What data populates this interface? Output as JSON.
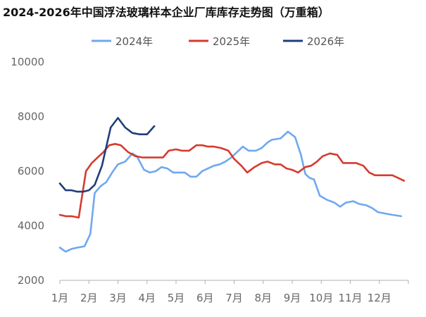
{
  "chart_data": {
    "type": "line",
    "title": "2024-2026年中国浮法玻璃样本企业厂库库存走势图（万重箱）",
    "xlabel": "",
    "ylabel": "",
    "ylim": [
      2000,
      10000
    ],
    "yticks": [
      2000,
      4000,
      6000,
      8000,
      10000
    ],
    "month_labels": [
      "1月",
      "2月",
      "3月",
      "4月",
      "5月",
      "6月",
      "7月",
      "8月",
      "9月",
      "10月",
      "11月",
      "12月"
    ],
    "grid": false,
    "legend_position": "top",
    "series": [
      {
        "name": "2024年",
        "color": "#6fa8f0",
        "x": [
          0,
          0.2,
          0.4,
          0.6,
          0.85,
          1.05,
          1.2,
          1.4,
          1.6,
          1.8,
          2.0,
          2.25,
          2.5,
          2.65,
          2.9,
          3.1,
          3.3,
          3.5,
          3.7,
          3.9,
          4.1,
          4.3,
          4.5,
          4.7,
          4.9,
          5.1,
          5.3,
          5.5,
          5.7,
          5.9,
          6.1,
          6.3,
          6.5,
          6.75,
          6.95,
          7.15,
          7.3,
          7.6,
          7.85,
          8.1,
          8.3,
          8.45,
          8.6,
          8.75,
          8.95,
          9.2,
          9.45,
          9.65,
          9.85,
          10.1,
          10.3,
          10.55,
          10.75,
          10.95,
          11.2,
          11.45,
          11.75
        ],
        "values": [
          3200,
          3050,
          3150,
          3200,
          3250,
          3700,
          5200,
          5450,
          5600,
          5950,
          6250,
          6350,
          6650,
          6550,
          6050,
          5950,
          6000,
          6150,
          6100,
          5950,
          5950,
          5950,
          5800,
          5800,
          6000,
          6100,
          6200,
          6250,
          6350,
          6500,
          6700,
          6900,
          6750,
          6750,
          6850,
          7050,
          7150,
          7200,
          7450,
          7250,
          6600,
          5900,
          5750,
          5700,
          5100,
          4950,
          4850,
          4700,
          4850,
          4900,
          4800,
          4750,
          4650,
          4500,
          4450,
          4400,
          4350
        ]
      },
      {
        "name": "2025年",
        "color": "#d63a2f",
        "x": [
          0,
          0.2,
          0.4,
          0.65,
          0.9,
          1.1,
          1.3,
          1.5,
          1.7,
          1.9,
          2.1,
          2.35,
          2.6,
          2.85,
          3.05,
          3.3,
          3.55,
          3.75,
          4.0,
          4.2,
          4.45,
          4.7,
          4.9,
          5.1,
          5.3,
          5.55,
          5.8,
          6.0,
          6.25,
          6.45,
          6.7,
          6.95,
          7.15,
          7.4,
          7.6,
          7.8,
          8.0,
          8.2,
          8.45,
          8.65,
          8.85,
          9.05,
          9.3,
          9.55,
          9.75,
          9.95,
          10.2,
          10.45,
          10.65,
          10.85,
          11.05,
          11.25,
          11.45,
          11.65,
          11.85
        ],
        "values": [
          4400,
          4350,
          4350,
          4300,
          6000,
          6300,
          6500,
          6700,
          6950,
          7000,
          6950,
          6700,
          6550,
          6500,
          6500,
          6500,
          6500,
          6750,
          6800,
          6750,
          6750,
          6950,
          6950,
          6900,
          6900,
          6850,
          6750,
          6450,
          6200,
          5950,
          6150,
          6300,
          6350,
          6250,
          6250,
          6100,
          6050,
          5950,
          6150,
          6200,
          6350,
          6550,
          6650,
          6600,
          6300,
          6300,
          6300,
          6200,
          5950,
          5850,
          5850,
          5850,
          5850,
          5750,
          5650
        ]
      },
      {
        "name": "2026年",
        "color": "#1f3e7a",
        "x": [
          0,
          0.2,
          0.4,
          0.6,
          0.8,
          1.0,
          1.2,
          1.45,
          1.75,
          2.0,
          2.25,
          2.5,
          2.75,
          3.0,
          3.25
        ],
        "values": [
          5550,
          5300,
          5300,
          5250,
          5250,
          5300,
          5500,
          6200,
          7600,
          7950,
          7600,
          7400,
          7350,
          7350,
          7650
        ]
      }
    ]
  }
}
